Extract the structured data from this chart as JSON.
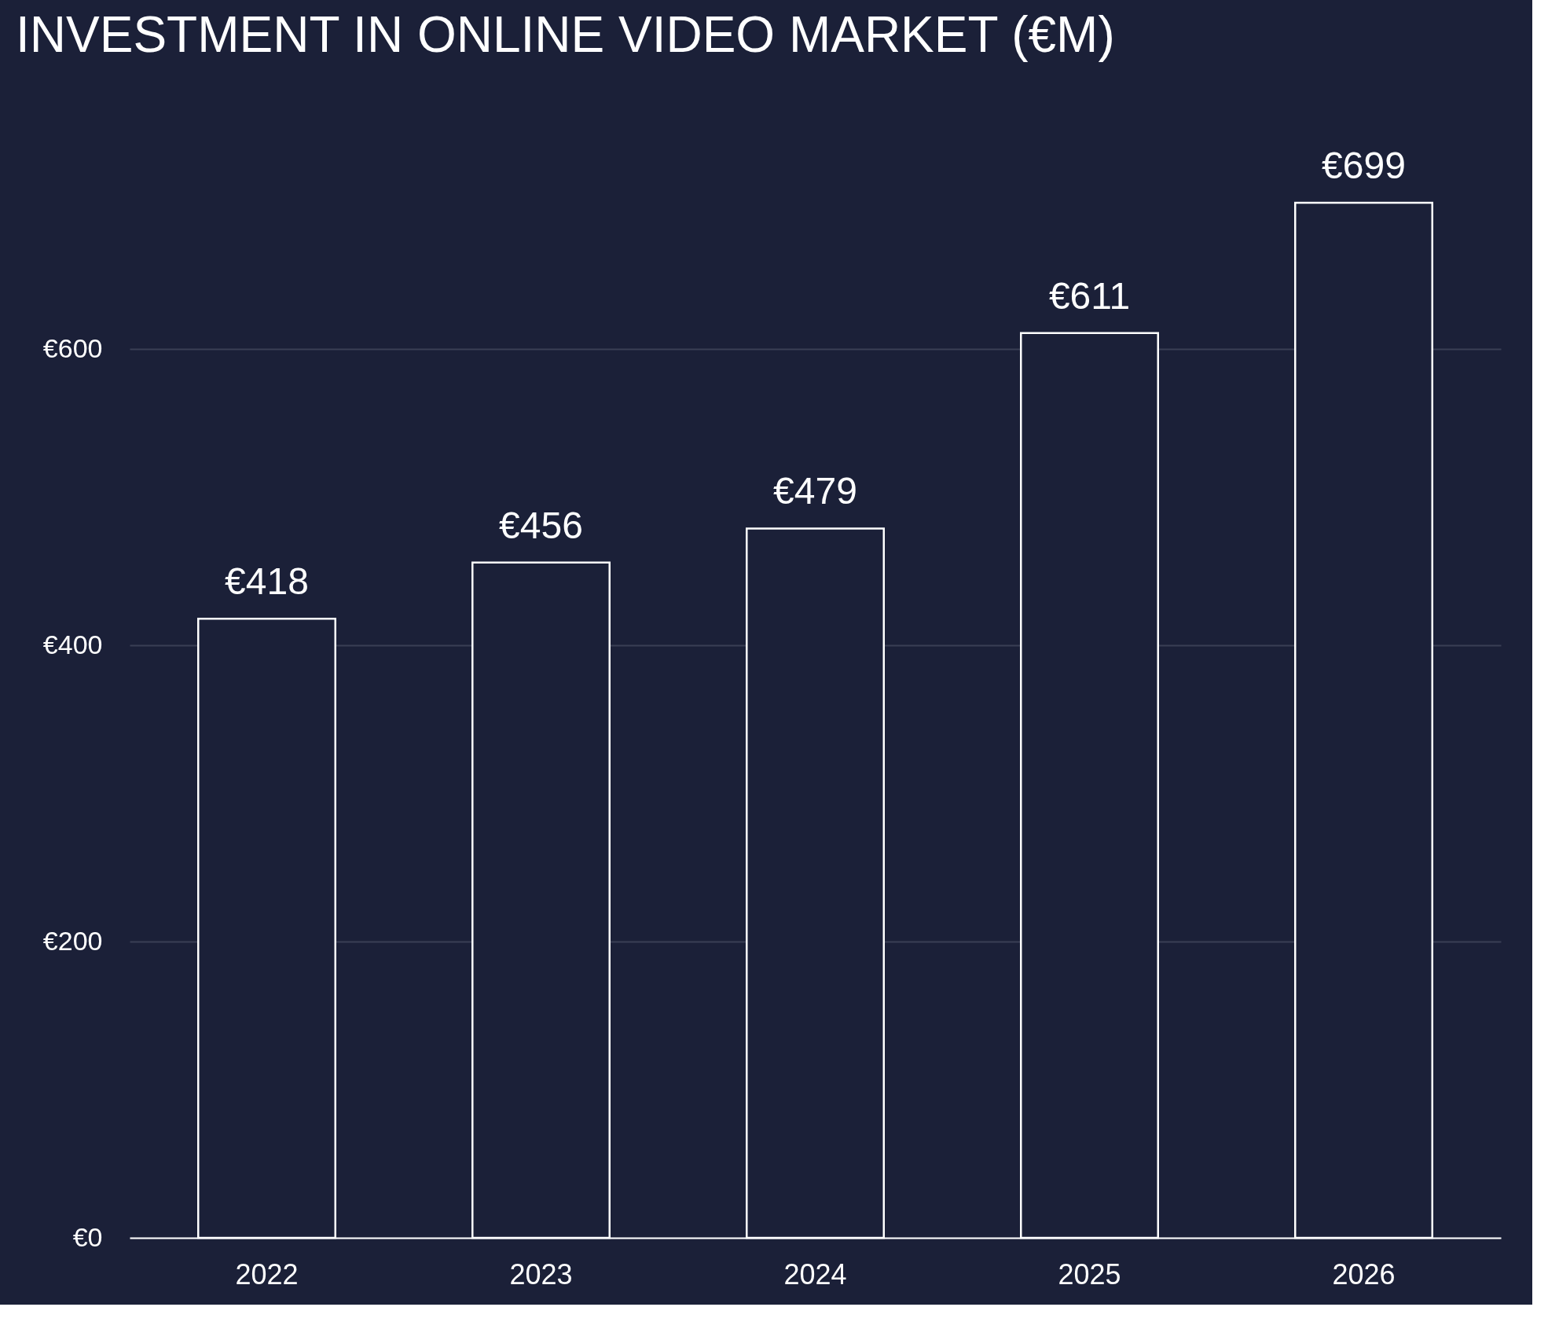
{
  "chart_data": {
    "type": "bar",
    "title": "INVESTMENT IN ONLINE VIDEO MARKET (€M)",
    "categories": [
      "2022",
      "2023",
      "2024",
      "2025",
      "2026"
    ],
    "values": [
      418,
      456,
      479,
      611,
      699
    ],
    "value_labels": [
      "€418",
      "€456",
      "€479",
      "€611",
      "€699"
    ],
    "color": "#ffffff",
    "ylim": [
      0,
      700
    ],
    "yticks": [
      {
        "value": 0,
        "label": "€0"
      },
      {
        "value": 200,
        "label": "€200"
      },
      {
        "value": 400,
        "label": "€400"
      },
      {
        "value": 600,
        "label": "€600"
      }
    ],
    "grid": "y"
  }
}
